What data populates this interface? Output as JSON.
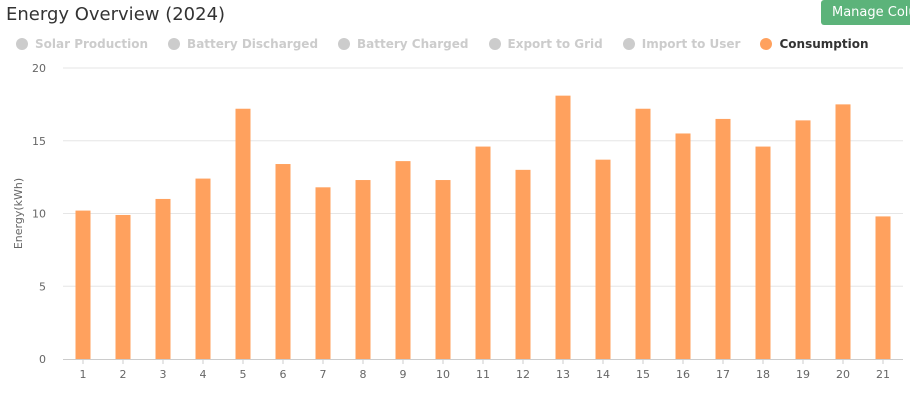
{
  "title": "Energy Overview (2024)",
  "manage_button": "Manage Colu",
  "colors": {
    "active": "#ffa15e",
    "inactive": "#cccccc",
    "button": "#5cb37a"
  },
  "legend": [
    {
      "label": "Solar Production",
      "active": false
    },
    {
      "label": "Battery Discharged",
      "active": false
    },
    {
      "label": "Battery Charged",
      "active": false
    },
    {
      "label": "Export to Grid",
      "active": false
    },
    {
      "label": "Import to User",
      "active": false
    },
    {
      "label": "Consumption",
      "active": true
    }
  ],
  "chart_data": {
    "type": "bar",
    "categories": [
      "1",
      "2",
      "3",
      "4",
      "5",
      "6",
      "7",
      "8",
      "9",
      "10",
      "11",
      "12",
      "13",
      "14",
      "15",
      "16",
      "17",
      "18",
      "19",
      "20",
      "21"
    ],
    "series": [
      {
        "name": "Consumption",
        "values": [
          10.2,
          9.9,
          11.0,
          12.4,
          17.2,
          13.4,
          11.8,
          12.3,
          13.6,
          12.3,
          14.6,
          13.0,
          18.1,
          13.7,
          17.2,
          15.5,
          16.5,
          14.6,
          16.4,
          17.5,
          9.8
        ]
      }
    ],
    "ylabel": "Energy(kWh)",
    "ylim": [
      0,
      20
    ],
    "yticks": [
      "0",
      "5",
      "10",
      "15",
      "20"
    ],
    "grid": true
  }
}
